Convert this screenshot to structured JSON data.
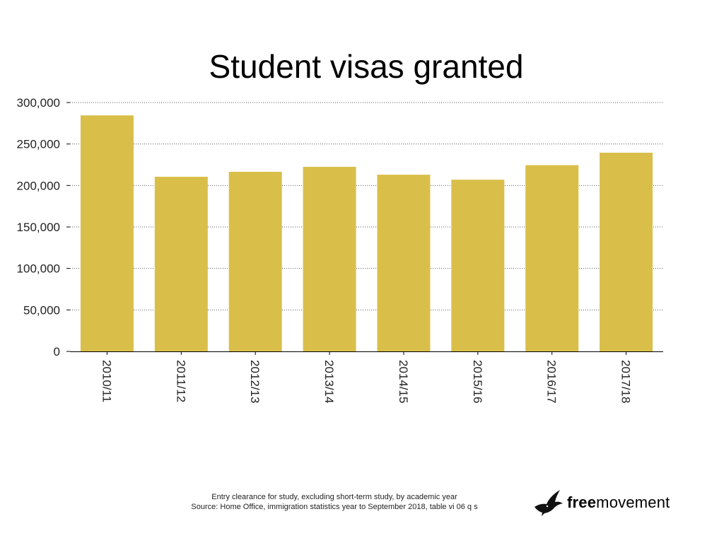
{
  "chart_data": {
    "type": "bar",
    "title": "Student visas granted",
    "categories": [
      "2010/11",
      "2011/12",
      "2012/13",
      "2013/14",
      "2014/15",
      "2015/16",
      "2016/17",
      "2017/18"
    ],
    "values": [
      284500,
      210500,
      216500,
      222500,
      213000,
      207000,
      224500,
      239500
    ],
    "ylim": [
      0,
      300000
    ],
    "yticks": [
      0,
      50000,
      100000,
      150000,
      200000,
      250000,
      300000
    ],
    "ytick_labels": [
      "0",
      "50,000",
      "100,000",
      "150,000",
      "200,000",
      "250,000",
      "300,000"
    ],
    "grid": "horizontal-dotted",
    "bar_color": "#d9bf4a",
    "legend": "none"
  },
  "footnote": {
    "line1": "Entry clearance for study, excluding short-term study, by academic year",
    "line2": "Source: Home Office, immigration statistics year to September 2018, table vi 06 q s"
  },
  "logo": {
    "icon": "bird-icon",
    "text_bold": "free",
    "text_regular": "movement"
  }
}
